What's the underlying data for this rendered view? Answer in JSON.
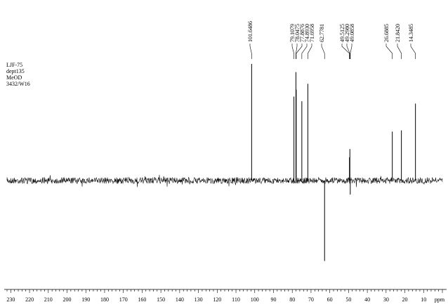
{
  "chart_data": {
    "type": "line",
    "experiment_info": [
      "LJF-75",
      "dept135",
      "MeOD",
      "3432/W16"
    ],
    "xlabel": "ppm",
    "xlim": [
      232,
      0
    ],
    "x_ticks": [
      230,
      220,
      210,
      200,
      190,
      180,
      170,
      160,
      150,
      140,
      130,
      120,
      110,
      100,
      90,
      80,
      70,
      60,
      50,
      40,
      30,
      20,
      10
    ],
    "peak_labels": [
      "101.6486",
      "79.1079",
      "78.0475",
      "77.8876",
      "74.8930",
      "71.6958",
      "62.7781",
      "49.5125",
      "49.2980",
      "49.0858",
      "26.6885",
      "21.8420",
      "14.3485"
    ],
    "peaks": [
      {
        "ppm": 101.6486,
        "intensity": 1.0
      },
      {
        "ppm": 79.1079,
        "intensity": 0.72
      },
      {
        "ppm": 78.0475,
        "intensity": 0.93
      },
      {
        "ppm": 77.8876,
        "intensity": 0.78
      },
      {
        "ppm": 74.893,
        "intensity": 0.68
      },
      {
        "ppm": 71.6958,
        "intensity": 0.83
      },
      {
        "ppm": 62.7781,
        "intensity": -0.69
      },
      {
        "ppm": 49.5125,
        "intensity": 0.2
      },
      {
        "ppm": 49.298,
        "intensity": 0.27
      },
      {
        "ppm": 49.0858,
        "intensity": -0.12
      },
      {
        "ppm": 26.6885,
        "intensity": 0.42
      },
      {
        "ppm": 21.842,
        "intensity": 0.43
      },
      {
        "ppm": 14.3485,
        "intensity": 0.66
      }
    ],
    "grid": false
  }
}
